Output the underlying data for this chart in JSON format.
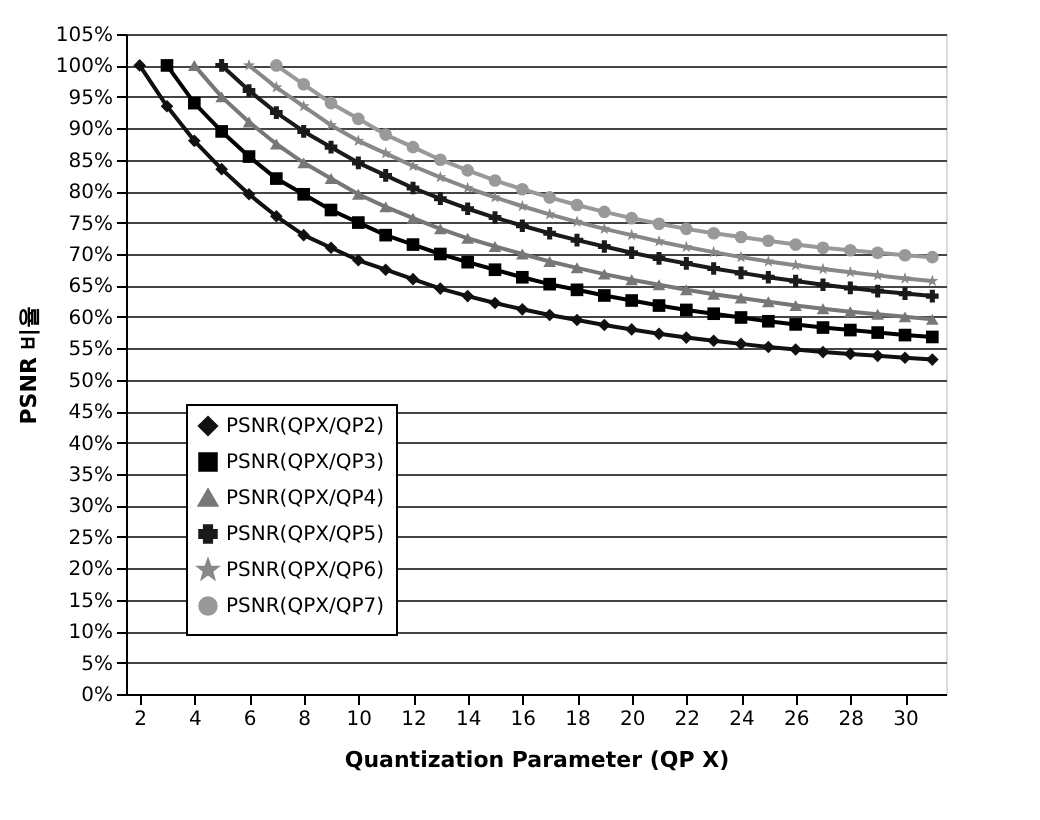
{
  "chart_data": {
    "type": "line",
    "xlabel": "Quantization Parameter (QP X)",
    "ylabel": "PSNR 비율",
    "xlim": [
      1.5,
      31.5
    ],
    "xticks": [
      2,
      4,
      6,
      8,
      10,
      12,
      14,
      16,
      18,
      20,
      22,
      24,
      26,
      28,
      30
    ],
    "ylim": [
      0,
      105
    ],
    "yticks": [
      {
        "value": 0,
        "label": "0%"
      },
      {
        "value": 5,
        "label": "5%"
      },
      {
        "value": 10,
        "label": "10%"
      },
      {
        "value": 15,
        "label": "15%"
      },
      {
        "value": 20,
        "label": "20%"
      },
      {
        "value": 25,
        "label": "25%"
      },
      {
        "value": 30,
        "label": "30%"
      },
      {
        "value": 35,
        "label": "35%"
      },
      {
        "value": 40,
        "label": "40%"
      },
      {
        "value": 45,
        "label": "45%"
      },
      {
        "value": 50,
        "label": "50%"
      },
      {
        "value": 55,
        "label": "55%"
      },
      {
        "value": 60,
        "label": "60%"
      },
      {
        "value": 65,
        "label": "65%"
      },
      {
        "value": 70,
        "label": "70%"
      },
      {
        "value": 75,
        "label": "75%"
      },
      {
        "value": 80,
        "label": "80%"
      },
      {
        "value": 85,
        "label": "85%"
      },
      {
        "value": 90,
        "label": "90%"
      },
      {
        "value": 95,
        "label": "95%"
      },
      {
        "value": 100,
        "label": "100%"
      },
      {
        "value": 105,
        "label": "105%"
      }
    ],
    "grid": "y",
    "legend": "left",
    "line_style": "solid",
    "series": [
      {
        "name": "PSNR(QPX/QP2)",
        "color": "#111111",
        "marker": "diamond",
        "x": [
          2,
          3,
          4,
          5,
          6,
          7,
          8,
          9,
          10,
          11,
          12,
          13,
          14,
          15,
          16,
          17,
          18,
          19,
          20,
          21,
          22,
          23,
          24,
          25,
          26,
          27,
          28,
          29,
          30,
          31
        ],
        "values": [
          100,
          93.5,
          88,
          83.5,
          79.5,
          76,
          73,
          71,
          69,
          67.5,
          66,
          64.5,
          63.3,
          62.2,
          61.2,
          60.3,
          59.5,
          58.7,
          58,
          57.3,
          56.7,
          56.2,
          55.7,
          55.2,
          54.8,
          54.4,
          54.1,
          53.8,
          53.5,
          53.2
        ]
      },
      {
        "name": "PSNR(QPX/QP3)",
        "color": "#000000",
        "marker": "square",
        "x": [
          3,
          4,
          5,
          6,
          7,
          8,
          9,
          10,
          11,
          12,
          13,
          14,
          15,
          16,
          17,
          18,
          19,
          20,
          21,
          22,
          23,
          24,
          25,
          26,
          27,
          28,
          29,
          30,
          31
        ],
        "values": [
          100,
          94,
          89.5,
          85.5,
          82,
          79.5,
          77,
          75,
          73,
          71.5,
          70,
          68.7,
          67.5,
          66.3,
          65.2,
          64.3,
          63.4,
          62.6,
          61.8,
          61.1,
          60.5,
          59.9,
          59.3,
          58.8,
          58.3,
          57.9,
          57.5,
          57.1,
          56.8
        ]
      },
      {
        "name": "PSNR(QPX/QP4)",
        "color": "#777777",
        "marker": "triangle",
        "x": [
          4,
          5,
          6,
          7,
          8,
          9,
          10,
          11,
          12,
          13,
          14,
          15,
          16,
          17,
          18,
          19,
          20,
          21,
          22,
          23,
          24,
          25,
          26,
          27,
          28,
          29,
          30,
          31
        ],
        "values": [
          100,
          95,
          91,
          87.5,
          84.5,
          82,
          79.5,
          77.5,
          75.7,
          74,
          72.5,
          71.2,
          70,
          68.8,
          67.8,
          66.8,
          65.9,
          65.1,
          64.3,
          63.6,
          63,
          62.4,
          61.8,
          61.3,
          60.8,
          60.4,
          60,
          59.6
        ]
      },
      {
        "name": "PSNR(QPX/QP5)",
        "color": "#1a1a1a",
        "marker": "cross",
        "x": [
          5,
          6,
          7,
          8,
          9,
          10,
          11,
          12,
          13,
          14,
          15,
          16,
          17,
          18,
          19,
          20,
          21,
          22,
          23,
          24,
          25,
          26,
          27,
          28,
          29,
          30,
          31
        ],
        "values": [
          100,
          96,
          92.5,
          89.5,
          87,
          84.5,
          82.5,
          80.5,
          78.8,
          77.2,
          75.8,
          74.5,
          73.3,
          72.2,
          71.2,
          70.2,
          69.3,
          68.5,
          67.7,
          67,
          66.3,
          65.7,
          65.1,
          64.6,
          64.1,
          63.7,
          63.3
        ]
      },
      {
        "name": "PSNR(QPX/QP6)",
        "color": "#888888",
        "marker": "star",
        "x": [
          6,
          7,
          8,
          9,
          10,
          11,
          12,
          13,
          14,
          15,
          16,
          17,
          18,
          19,
          20,
          21,
          22,
          23,
          24,
          25,
          26,
          27,
          28,
          29,
          30,
          31
        ],
        "values": [
          100,
          96.5,
          93.5,
          90.5,
          88,
          86,
          84,
          82.2,
          80.5,
          79,
          77.6,
          76.3,
          75.1,
          74,
          73,
          72,
          71.1,
          70.3,
          69.5,
          68.8,
          68.2,
          67.6,
          67.1,
          66.6,
          66.1,
          65.7
        ]
      },
      {
        "name": "PSNR(QPX/QP7)",
        "color": "#999999",
        "marker": "circle",
        "x": [
          7,
          8,
          9,
          10,
          11,
          12,
          13,
          14,
          15,
          16,
          17,
          18,
          19,
          20,
          21,
          22,
          23,
          24,
          25,
          26,
          27,
          28,
          29,
          30,
          31
        ],
        "values": [
          100,
          97,
          94,
          91.5,
          89,
          87,
          85,
          83.3,
          81.7,
          80.3,
          79,
          77.8,
          76.7,
          75.7,
          74.8,
          74,
          73.3,
          72.7,
          72.1,
          71.5,
          71,
          70.6,
          70.2,
          69.8,
          69.5
        ]
      }
    ]
  }
}
